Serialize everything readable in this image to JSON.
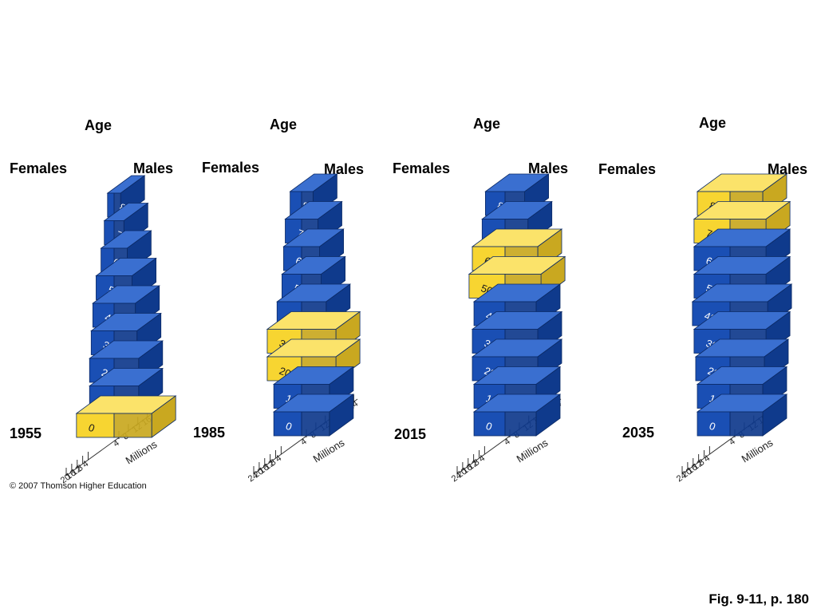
{
  "colors": {
    "stable": "#1a4fb4",
    "stable_side": "#0f3a8c",
    "stable_top": "#3a6fd0",
    "boomer": "#f7d531",
    "boomer_side": "#c9a820",
    "boomer_top": "#fbe36a"
  },
  "footer": {
    "copyright": "© 2007 Thomson Higher Education",
    "figure_ref": "Fig. 9-11, p. 180"
  },
  "chart_data": [
    {
      "type": "bar",
      "year": "1955",
      "age_title": "Age",
      "left_label": "Females",
      "right_label": "Males",
      "axis_label": "Millions",
      "categories": [
        "0",
        "10",
        "20",
        "30",
        "40",
        "50",
        "60",
        "70",
        "80+"
      ],
      "series": [
        {
          "name": "Females",
          "values": [
            11.5,
            7.5,
            7.5,
            7,
            6.5,
            5.5,
            4,
            3,
            2
          ]
        },
        {
          "name": "Males",
          "values": [
            11.5,
            7.5,
            7.5,
            7,
            6.5,
            5.5,
            4,
            3,
            2
          ]
        }
      ],
      "baby_boom_group": "0",
      "ticks_left": [
        "20",
        "16",
        "12",
        "8",
        "4"
      ],
      "ticks_right": [
        "4",
        "8",
        "12",
        "16",
        "20"
      ]
    },
    {
      "type": "bar",
      "year": "1985",
      "age_title": "Age",
      "left_label": "Females",
      "right_label": "Males",
      "axis_label": "Millions",
      "categories": [
        "0",
        "10",
        "20",
        "30",
        "40",
        "50",
        "60",
        "70",
        "80+"
      ],
      "series": [
        {
          "name": "Females",
          "values": [
            8.5,
            8.5,
            10.5,
            10.5,
            7.5,
            6,
            5.5,
            5,
            3.5
          ]
        },
        {
          "name": "Males",
          "values": [
            8.5,
            8.5,
            10.5,
            10.5,
            7.5,
            6,
            5.5,
            5,
            3.5
          ]
        }
      ],
      "baby_boom_group": "20-30",
      "ticks_left": [
        "24",
        "20",
        "16",
        "12",
        "8",
        "4"
      ],
      "ticks_right": [
        "4",
        "8",
        "12",
        "16",
        "20",
        "24"
      ]
    },
    {
      "type": "bar",
      "year": "2015",
      "age_title": "Age",
      "left_label": "Females",
      "right_label": "Males",
      "axis_label": "Millions",
      "categories": [
        "0",
        "10",
        "20",
        "30",
        "40",
        "50",
        "60",
        "70",
        "80+"
      ],
      "series": [
        {
          "name": "Females",
          "values": [
            9.5,
            9.5,
            10,
            10,
            9.5,
            11,
            10,
            7,
            6
          ]
        },
        {
          "name": "Males",
          "values": [
            9.5,
            9.5,
            10,
            10,
            9.5,
            11,
            10,
            7,
            6
          ]
        }
      ],
      "baby_boom_group": "50-60",
      "ticks_left": [
        "24",
        "20",
        "16",
        "12",
        "8",
        "4"
      ],
      "ticks_right": [
        "4",
        "8",
        "12",
        "16",
        "20",
        "24"
      ]
    },
    {
      "type": "bar",
      "year": "2035",
      "age_title": "Age",
      "left_label": "Females",
      "right_label": "Males",
      "axis_label": "Millions",
      "categories": [
        "0",
        "10",
        "20",
        "30",
        "40",
        "50",
        "60",
        "70",
        "80+"
      ],
      "series": [
        {
          "name": "Females",
          "values": [
            10,
            10,
            10.5,
            11,
            11.5,
            11,
            11,
            11,
            10
          ]
        },
        {
          "name": "Males",
          "values": [
            10,
            10,
            10.5,
            11,
            11.5,
            11,
            11,
            11,
            10
          ]
        }
      ],
      "baby_boom_group": "70-80+",
      "ticks_left": [
        "24",
        "20",
        "16",
        "12",
        "8",
        "4"
      ],
      "ticks_right": [
        "4",
        "8",
        "12",
        "16",
        "20",
        "24"
      ]
    }
  ]
}
